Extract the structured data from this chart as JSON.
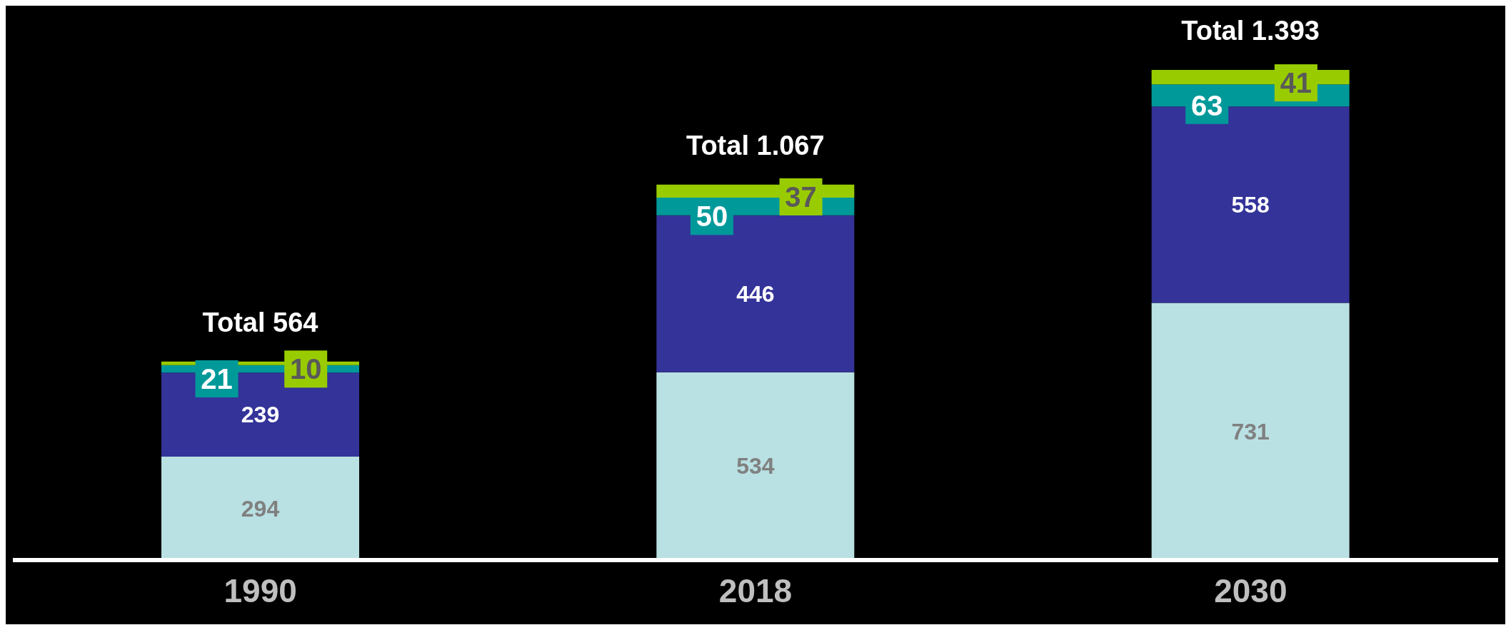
{
  "chart_data": {
    "type": "bar",
    "stacked": true,
    "data_labels": true,
    "legend": false,
    "grid": false,
    "categories": [
      "1990",
      "2018",
      "2030"
    ],
    "series": [
      {
        "color": "#b9e0e2",
        "values": [
          294,
          534,
          731
        ]
      },
      {
        "color": "#333399",
        "values": [
          239,
          446,
          558
        ]
      },
      {
        "color": "#009999",
        "values": [
          21,
          50,
          63
        ]
      },
      {
        "color": "#99cc00",
        "values": [
          10,
          37,
          41
        ]
      }
    ],
    "totals": [
      "Total 564",
      "Total 1.067",
      "Total 1.393"
    ]
  }
}
